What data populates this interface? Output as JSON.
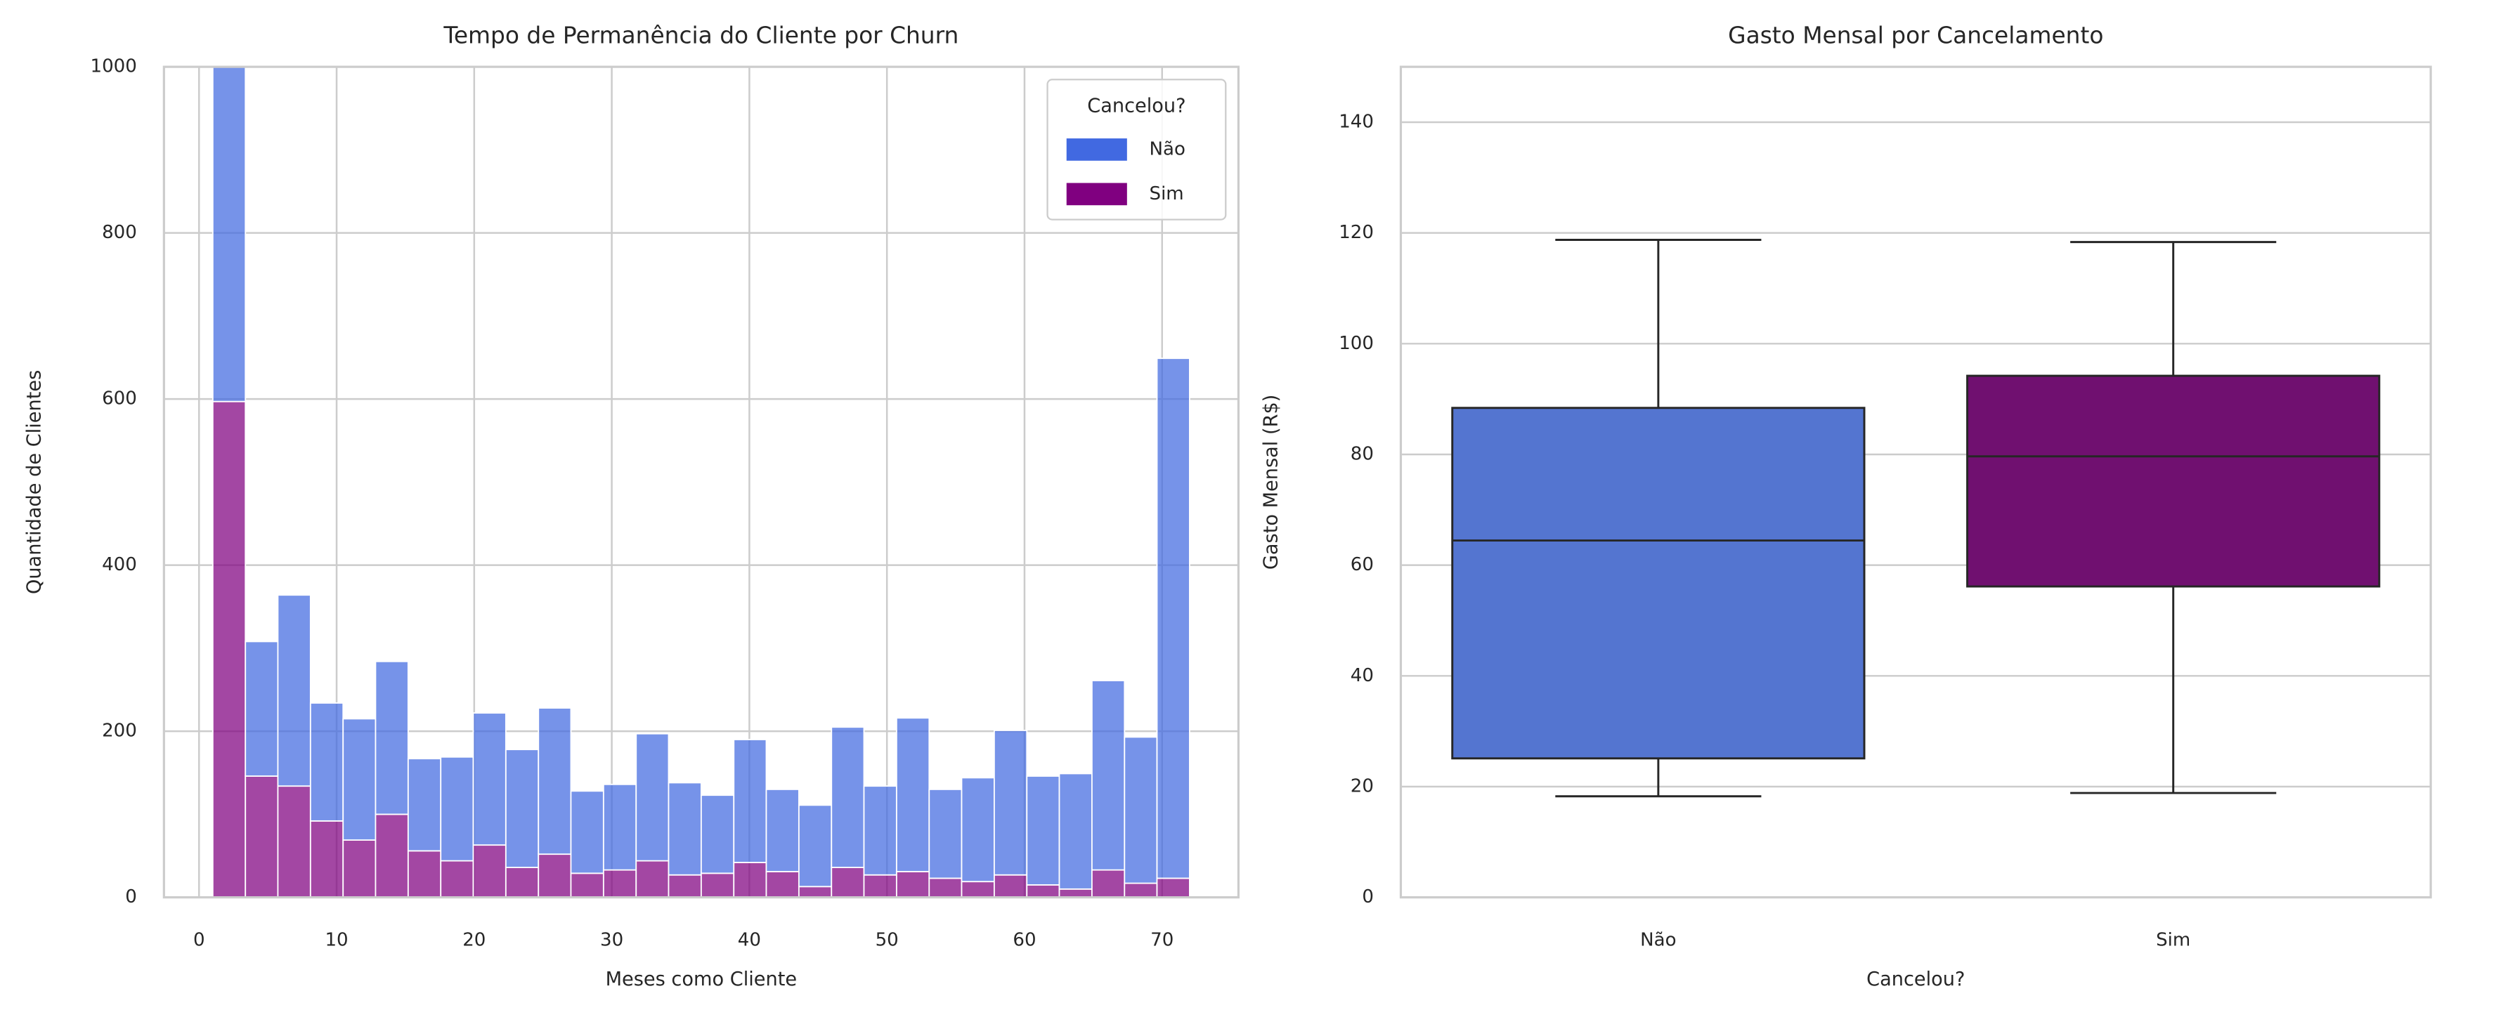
{
  "chart_data": [
    {
      "type": "histogram",
      "title": "Tempo de Permanência do Cliente por Churn",
      "xlabel": "Meses como Cliente",
      "ylabel": "Quantidade de Clientes",
      "bins": [
        1,
        3.37,
        5.73,
        8.1,
        10.47,
        12.83,
        15.2,
        17.57,
        19.93,
        22.3,
        24.67,
        27.03,
        29.4,
        31.77,
        34.13,
        36.5,
        38.87,
        41.23,
        43.6,
        45.97,
        48.33,
        50.7,
        53.07,
        55.43,
        57.8,
        60.17,
        62.53,
        64.9,
        67.27,
        69.63,
        72
      ],
      "series": [
        {
          "name": "Não",
          "color": "#4169e1",
          "values": [
            454,
            162,
            230,
            142,
            146,
            184,
            111,
            125,
            159,
            142,
            176,
            99,
            103,
            153,
            111,
            94,
            148,
            99,
            98,
            169,
            107,
            185,
            107,
            125,
            174,
            131,
            139,
            228,
            176,
            626
          ]
        },
        {
          "name": "Sim",
          "color": "#800080",
          "values": [
            597,
            146,
            134,
            92,
            69,
            100,
            56,
            44,
            63,
            36,
            52,
            29,
            33,
            44,
            27,
            29,
            42,
            31,
            13,
            36,
            27,
            31,
            23,
            19,
            27,
            15,
            10,
            33,
            17,
            23
          ]
        }
      ],
      "stacked": true,
      "legend_title": "Cancelou?",
      "legend_loc": "upper right",
      "xlim": [
        -2.55,
        75.55
      ],
      "xticks": [
        0,
        10,
        20,
        30,
        40,
        50,
        60,
        70
      ],
      "ylim": [
        0,
        1000
      ],
      "yticks": [
        0,
        200,
        400,
        600,
        800,
        1000
      ],
      "grid": "both"
    },
    {
      "type": "box",
      "title": "Gasto Mensal por Cancelamento",
      "xlabel": "Cancelou?",
      "ylabel": "Gasto Mensal (R$)",
      "categories": [
        "Não",
        "Sim"
      ],
      "colors": [
        "#5475d0",
        "#701070"
      ],
      "boxes": [
        {
          "min": 18.25,
          "q1": 25.1,
          "median": 64.45,
          "q3": 88.4,
          "max": 118.75
        },
        {
          "min": 18.85,
          "q1": 56.15,
          "median": 79.65,
          "q3": 94.2,
          "max": 118.35
        }
      ],
      "ylim": [
        0,
        150
      ],
      "yticks": [
        0,
        20,
        40,
        60,
        80,
        100,
        120,
        140
      ],
      "grid": "y"
    }
  ]
}
